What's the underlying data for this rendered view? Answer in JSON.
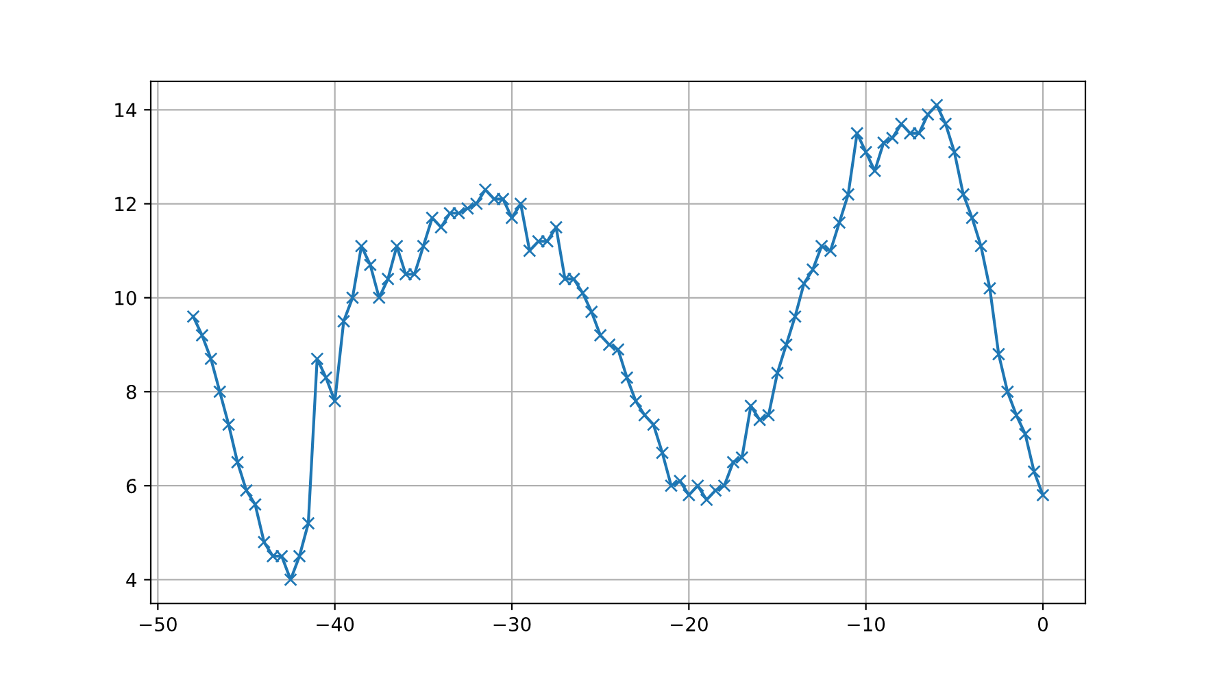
{
  "chart_data": {
    "type": "line",
    "x": [
      -48,
      -47.5,
      -47,
      -46.5,
      -46,
      -45.5,
      -45,
      -44.5,
      -44,
      -43.5,
      -43,
      -42.5,
      -42,
      -41.5,
      -41,
      -40.5,
      -40,
      -39.5,
      -39,
      -38.5,
      -38,
      -37.5,
      -37,
      -36.5,
      -36,
      -35.5,
      -35,
      -34.5,
      -34,
      -33.5,
      -33,
      -32.5,
      -32,
      -31.5,
      -31,
      -30.5,
      -30,
      -29.5,
      -29,
      -28.5,
      -28,
      -27.5,
      -27,
      -26.5,
      -26,
      -25.5,
      -25,
      -24.5,
      -24,
      -23.5,
      -23,
      -22.5,
      -22,
      -21.5,
      -21,
      -20.5,
      -20,
      -19.5,
      -19,
      -18.5,
      -18,
      -17.5,
      -17,
      -16.5,
      -16,
      -15.5,
      -15,
      -14.5,
      -14,
      -13.5,
      -13,
      -12.5,
      -12,
      -11.5,
      -11,
      -10.5,
      -10,
      -9.5,
      -9,
      -8.5,
      -8,
      -7.5,
      -7,
      -6.5,
      -6,
      -5.5,
      -5,
      -4.5,
      -4,
      -3.5,
      -3,
      -2.5,
      -2,
      -1.5,
      -1,
      -0.5,
      0
    ],
    "series": [
      {
        "color": "#1f77b4",
        "values": [
          9.6,
          9.2,
          8.7,
          8.0,
          7.3,
          6.5,
          5.9,
          5.6,
          4.8,
          4.5,
          4.5,
          4.0,
          4.5,
          5.2,
          8.7,
          8.3,
          7.8,
          9.5,
          10.0,
          11.1,
          10.7,
          10.0,
          10.4,
          11.1,
          10.5,
          10.5,
          11.1,
          11.7,
          11.5,
          11.8,
          11.8,
          11.9,
          12.0,
          12.3,
          12.1,
          12.1,
          11.7,
          12.0,
          11.0,
          11.2,
          11.2,
          11.5,
          10.4,
          10.4,
          10.1,
          9.7,
          9.2,
          9.0,
          8.9,
          8.3,
          7.8,
          7.5,
          7.3,
          6.7,
          6.0,
          6.1,
          5.8,
          6.0,
          5.7,
          5.9,
          6.0,
          6.5,
          6.6,
          7.7,
          7.4,
          7.5,
          8.4,
          9.0,
          9.6,
          10.3,
          10.6,
          11.1,
          11.0,
          11.6,
          12.2,
          13.5,
          13.1,
          12.7,
          13.3,
          13.4,
          13.7,
          13.5,
          13.5,
          13.9,
          14.1,
          13.7,
          13.1,
          12.2,
          11.7,
          11.1,
          10.2,
          8.8,
          8.0,
          7.5,
          7.1,
          6.3,
          5.8
        ]
      }
    ],
    "xlim": [
      -50.4,
      2.4
    ],
    "xticks": [
      {
        "value": -50,
        "label": "−50"
      },
      {
        "value": -40,
        "label": "−40"
      },
      {
        "value": -30,
        "label": "−30"
      },
      {
        "value": -20,
        "label": "−20"
      },
      {
        "value": -10,
        "label": "−10"
      },
      0
    ],
    "ylim": [
      3.495,
      14.605
    ],
    "yticks": [
      4,
      6,
      8,
      10,
      12,
      14
    ],
    "grid": true,
    "marker": "cross",
    "line_style": "solid"
  }
}
